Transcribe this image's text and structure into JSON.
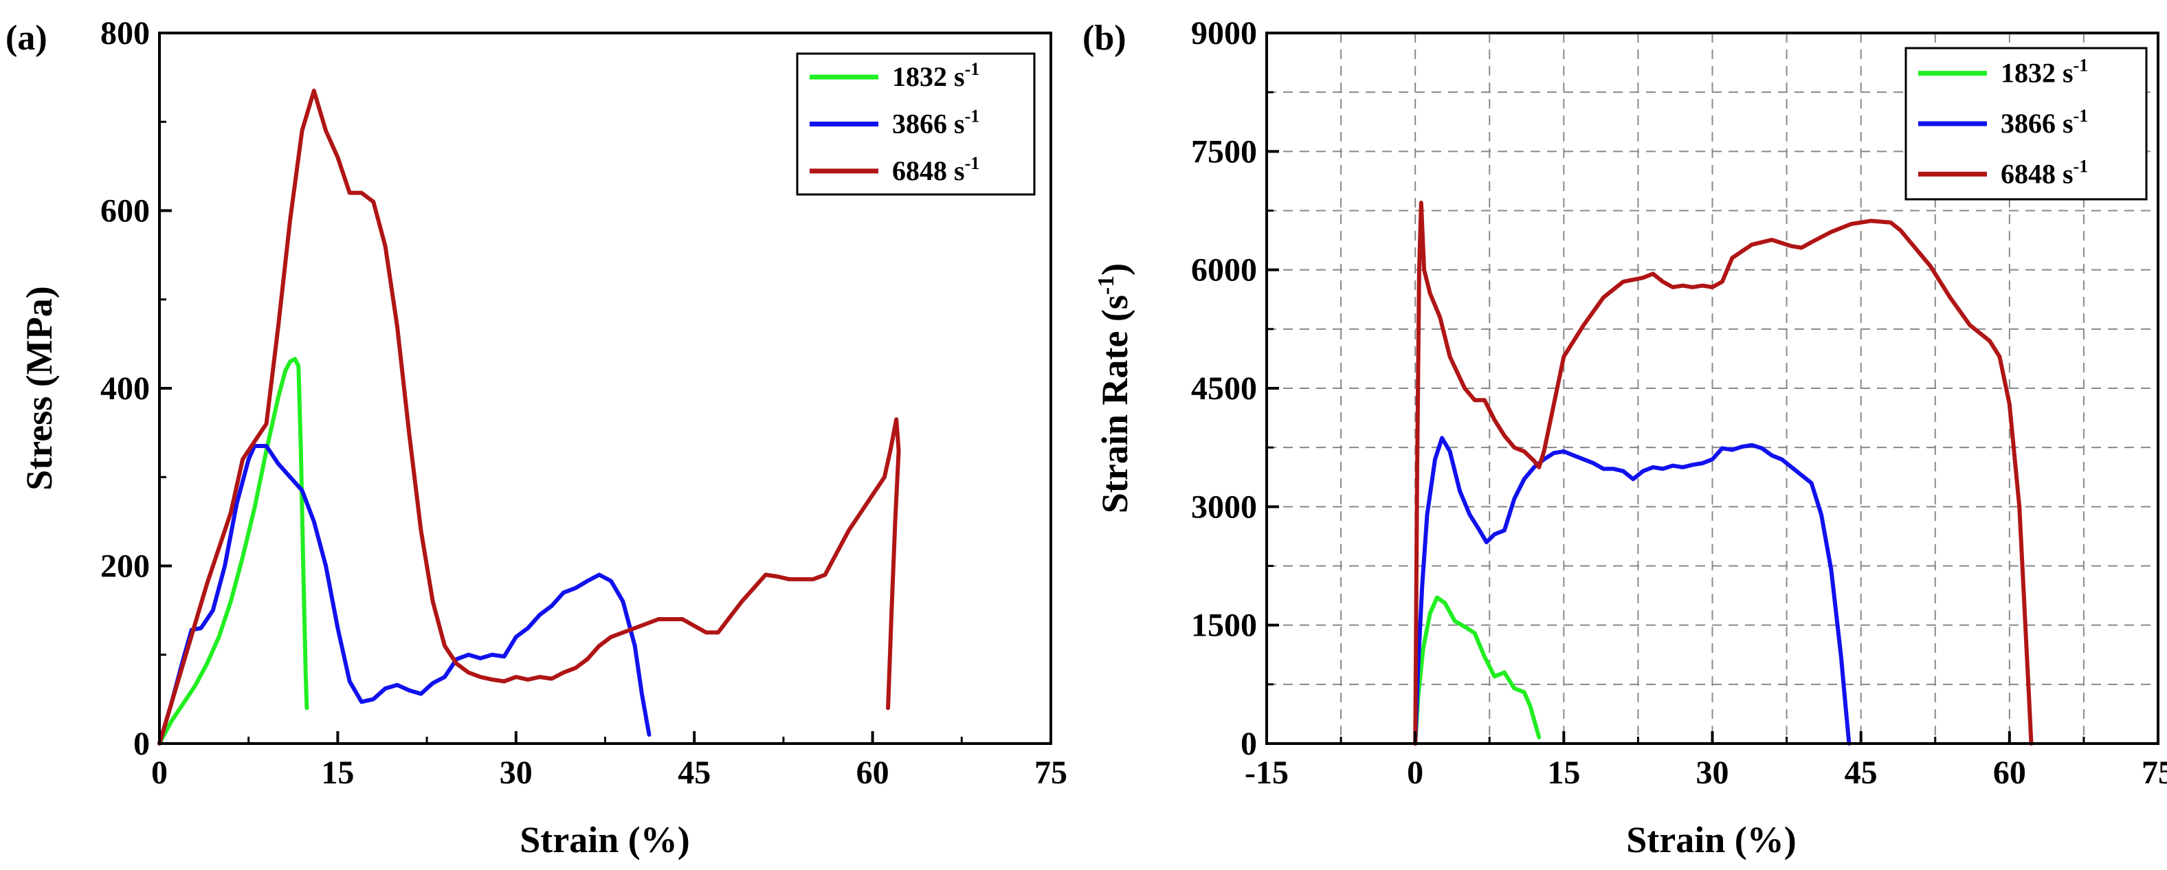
{
  "chart_data": [
    {
      "panel": "(a)",
      "type": "line",
      "xlabel": "Strain (%)",
      "ylabel": "Stress (MPa)",
      "xlim": [
        0,
        75
      ],
      "ylim": [
        0,
        800
      ],
      "xticks": [
        "0",
        "15",
        "30",
        "45",
        "60",
        "75"
      ],
      "yticks": [
        "0",
        "200",
        "400",
        "600",
        "800"
      ],
      "grid": false,
      "legend_position": "top-right",
      "series": [
        {
          "name": "1832",
          "unit": "s",
          "unit_exp": "-1",
          "color": "#22ee22",
          "points": [
            [
              0,
              0
            ],
            [
              1,
              25
            ],
            [
              2,
              45
            ],
            [
              3,
              65
            ],
            [
              4,
              90
            ],
            [
              5,
              120
            ],
            [
              6,
              160
            ],
            [
              7,
              210
            ],
            [
              8,
              265
            ],
            [
              9,
              330
            ],
            [
              10,
              390
            ],
            [
              10.6,
              420
            ],
            [
              11,
              430
            ],
            [
              11.4,
              433
            ],
            [
              11.7,
              425
            ],
            [
              11.9,
              330
            ],
            [
              12.1,
              200
            ],
            [
              12.3,
              80
            ],
            [
              12.4,
              40
            ]
          ]
        },
        {
          "name": "3866",
          "unit": "s",
          "unit_exp": "-1",
          "color": "#1111ee",
          "points": [
            [
              0,
              0
            ],
            [
              1,
              45
            ],
            [
              2,
              95
            ],
            [
              2.7,
              128
            ],
            [
              3.5,
              130
            ],
            [
              4.5,
              150
            ],
            [
              5.5,
              200
            ],
            [
              6.5,
              270
            ],
            [
              7.5,
              320
            ],
            [
              8,
              335
            ],
            [
              9,
              335
            ],
            [
              10,
              315
            ],
            [
              11,
              300
            ],
            [
              12,
              285
            ],
            [
              13,
              250
            ],
            [
              14,
              200
            ],
            [
              15,
              130
            ],
            [
              16,
              70
            ],
            [
              17,
              47
            ],
            [
              18,
              50
            ],
            [
              19,
              62
            ],
            [
              20,
              66
            ],
            [
              21,
              60
            ],
            [
              22,
              56
            ],
            [
              23,
              68
            ],
            [
              24,
              75
            ],
            [
              25,
              95
            ],
            [
              26,
              100
            ],
            [
              27,
              96
            ],
            [
              28,
              100
            ],
            [
              29,
              98
            ],
            [
              30,
              120
            ],
            [
              31,
              130
            ],
            [
              32,
              145
            ],
            [
              33,
              155
            ],
            [
              34,
              170
            ],
            [
              35,
              175
            ],
            [
              36,
              183
            ],
            [
              37,
              190
            ],
            [
              38,
              183
            ],
            [
              39,
              160
            ],
            [
              40,
              110
            ],
            [
              40.6,
              55
            ],
            [
              41,
              25
            ],
            [
              41.2,
              10
            ]
          ]
        },
        {
          "name": "6848",
          "unit": "s",
          "unit_exp": "-1",
          "color": "#b01515",
          "points": [
            [
              0,
              0
            ],
            [
              2,
              90
            ],
            [
              4,
              180
            ],
            [
              6,
              260
            ],
            [
              7,
              320
            ],
            [
              8,
              340
            ],
            [
              9,
              360
            ],
            [
              10,
              470
            ],
            [
              11,
              590
            ],
            [
              12,
              690
            ],
            [
              13,
              735
            ],
            [
              14,
              690
            ],
            [
              15,
              660
            ],
            [
              16,
              620
            ],
            [
              17,
              620
            ],
            [
              18,
              610
            ],
            [
              19,
              560
            ],
            [
              20,
              470
            ],
            [
              21,
              350
            ],
            [
              22,
              240
            ],
            [
              23,
              160
            ],
            [
              24,
              110
            ],
            [
              25,
              90
            ],
            [
              26,
              80
            ],
            [
              27,
              75
            ],
            [
              28,
              72
            ],
            [
              29,
              70
            ],
            [
              30,
              75
            ],
            [
              31,
              72
            ],
            [
              32,
              75
            ],
            [
              33,
              73
            ],
            [
              34,
              80
            ],
            [
              35,
              85
            ],
            [
              36,
              95
            ],
            [
              37,
              110
            ],
            [
              38,
              120
            ],
            [
              40,
              130
            ],
            [
              42,
              140
            ],
            [
              44,
              140
            ],
            [
              46,
              125
            ],
            [
              47,
              125
            ],
            [
              49,
              160
            ],
            [
              51,
              190
            ],
            [
              52,
              188
            ],
            [
              53,
              185
            ],
            [
              55,
              185
            ],
            [
              56,
              190
            ],
            [
              57,
              215
            ],
            [
              58,
              240
            ],
            [
              59,
              260
            ],
            [
              60,
              280
            ],
            [
              61,
              300
            ],
            [
              61.5,
              330
            ],
            [
              62,
              365
            ],
            [
              62.2,
              330
            ],
            [
              61.9,
              250
            ],
            [
              61.6,
              150
            ],
            [
              61.3,
              40
            ]
          ]
        }
      ]
    },
    {
      "panel": "(b)",
      "type": "line",
      "xlabel": "Strain (%)",
      "ylabel": "Strain Rate (s",
      "ylabel_sup": "-1",
      "ylabel_end": ")",
      "xlim": [
        -15,
        75
      ],
      "ylim": [
        0,
        9000
      ],
      "xticks": [
        "-15",
        "0",
        "15",
        "30",
        "45",
        "60",
        "75"
      ],
      "yticks": [
        "0",
        "1500",
        "3000",
        "4500",
        "6000",
        "7500",
        "9000"
      ],
      "grid": true,
      "legend_position": "top-right",
      "series": [
        {
          "name": "1832",
          "unit": "s",
          "unit_exp": "-1",
          "color": "#22ee22",
          "points": [
            [
              0,
              0
            ],
            [
              0.3,
              600
            ],
            [
              0.8,
              1200
            ],
            [
              1.5,
              1650
            ],
            [
              2.2,
              1850
            ],
            [
              3,
              1780
            ],
            [
              4,
              1550
            ],
            [
              5,
              1480
            ],
            [
              6,
              1400
            ],
            [
              7,
              1100
            ],
            [
              8,
              850
            ],
            [
              9,
              900
            ],
            [
              10,
              700
            ],
            [
              11,
              650
            ],
            [
              11.6,
              480
            ],
            [
              12,
              300
            ],
            [
              12.5,
              80
            ]
          ]
        },
        {
          "name": "3866",
          "unit": "s",
          "unit_exp": "-1",
          "color": "#1111ee",
          "points": [
            [
              0,
              0
            ],
            [
              0.3,
              1000
            ],
            [
              0.7,
              2000
            ],
            [
              1.2,
              2900
            ],
            [
              2,
              3600
            ],
            [
              2.7,
              3870
            ],
            [
              3.5,
              3700
            ],
            [
              4.5,
              3200
            ],
            [
              5.5,
              2900
            ],
            [
              6.5,
              2700
            ],
            [
              7.2,
              2550
            ],
            [
              8,
              2650
            ],
            [
              9,
              2700
            ],
            [
              10,
              3100
            ],
            [
              11,
              3350
            ],
            [
              12,
              3500
            ],
            [
              13,
              3600
            ],
            [
              14,
              3680
            ],
            [
              15,
              3700
            ],
            [
              16,
              3650
            ],
            [
              17,
              3600
            ],
            [
              18,
              3550
            ],
            [
              19,
              3480
            ],
            [
              20,
              3480
            ],
            [
              21,
              3450
            ],
            [
              22,
              3350
            ],
            [
              23,
              3450
            ],
            [
              24,
              3500
            ],
            [
              25,
              3480
            ],
            [
              26,
              3520
            ],
            [
              27,
              3500
            ],
            [
              28,
              3530
            ],
            [
              29,
              3550
            ],
            [
              30,
              3600
            ],
            [
              31,
              3740
            ],
            [
              32,
              3720
            ],
            [
              33,
              3760
            ],
            [
              34,
              3780
            ],
            [
              35,
              3740
            ],
            [
              36,
              3650
            ],
            [
              37,
              3600
            ],
            [
              38,
              3500
            ],
            [
              39,
              3400
            ],
            [
              40,
              3300
            ],
            [
              41,
              2900
            ],
            [
              42,
              2200
            ],
            [
              43,
              1100
            ],
            [
              43.5,
              400
            ],
            [
              43.8,
              0
            ]
          ]
        },
        {
          "name": "6848",
          "unit": "s",
          "unit_exp": "-1",
          "color": "#b01515",
          "points": [
            [
              0,
              0
            ],
            [
              0.2,
              3500
            ],
            [
              0.4,
              6000
            ],
            [
              0.6,
              6850
            ],
            [
              0.9,
              6000
            ],
            [
              1.5,
              5700
            ],
            [
              2.5,
              5400
            ],
            [
              3.5,
              4900
            ],
            [
              5,
              4500
            ],
            [
              6,
              4350
            ],
            [
              7,
              4350
            ],
            [
              8,
              4100
            ],
            [
              9,
              3900
            ],
            [
              10,
              3750
            ],
            [
              11,
              3700
            ],
            [
              12,
              3580
            ],
            [
              12.5,
              3500
            ],
            [
              13,
              3700
            ],
            [
              14,
              4300
            ],
            [
              15,
              4900
            ],
            [
              17,
              5300
            ],
            [
              19,
              5650
            ],
            [
              21,
              5850
            ],
            [
              23,
              5900
            ],
            [
              24,
              5950
            ],
            [
              25,
              5850
            ],
            [
              26,
              5780
            ],
            [
              27,
              5800
            ],
            [
              28,
              5780
            ],
            [
              29,
              5800
            ],
            [
              30,
              5780
            ],
            [
              31,
              5850
            ],
            [
              32,
              6150
            ],
            [
              34,
              6320
            ],
            [
              36,
              6380
            ],
            [
              38,
              6300
            ],
            [
              39,
              6280
            ],
            [
              40,
              6350
            ],
            [
              42,
              6480
            ],
            [
              44,
              6580
            ],
            [
              46,
              6620
            ],
            [
              48,
              6600
            ],
            [
              49,
              6500
            ],
            [
              50,
              6350
            ],
            [
              52,
              6050
            ],
            [
              54,
              5650
            ],
            [
              56,
              5300
            ],
            [
              58,
              5100
            ],
            [
              59,
              4900
            ],
            [
              60,
              4300
            ],
            [
              61,
              3000
            ],
            [
              61.6,
              1500
            ],
            [
              62,
              500
            ],
            [
              62.2,
              0
            ]
          ]
        }
      ]
    }
  ]
}
